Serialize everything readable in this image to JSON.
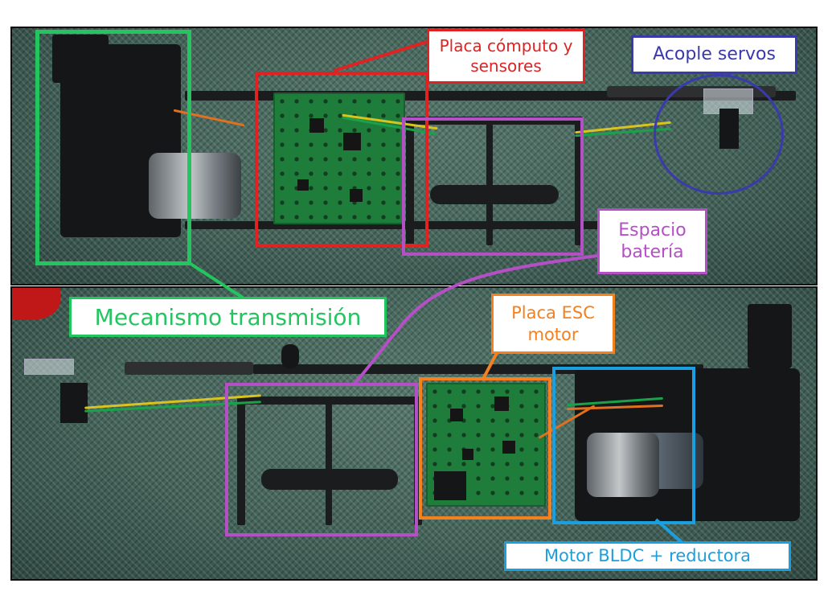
{
  "labels": {
    "placa_computo": "Placa cómputo y sensores",
    "acople_servos": "Acople servos",
    "espacio_bateria": "Espacio batería",
    "mecanismo_transmision": "Mecanismo transmisión",
    "placa_esc": "Placa ESC motor",
    "motor_bldc": "Motor BLDC + reductora"
  },
  "colors": {
    "green": "#22c55e",
    "red": "#e02222",
    "purple": "#b44fc6",
    "navy": "#3a3aad",
    "orange": "#f4801f",
    "sky": "#1a9fe0"
  }
}
